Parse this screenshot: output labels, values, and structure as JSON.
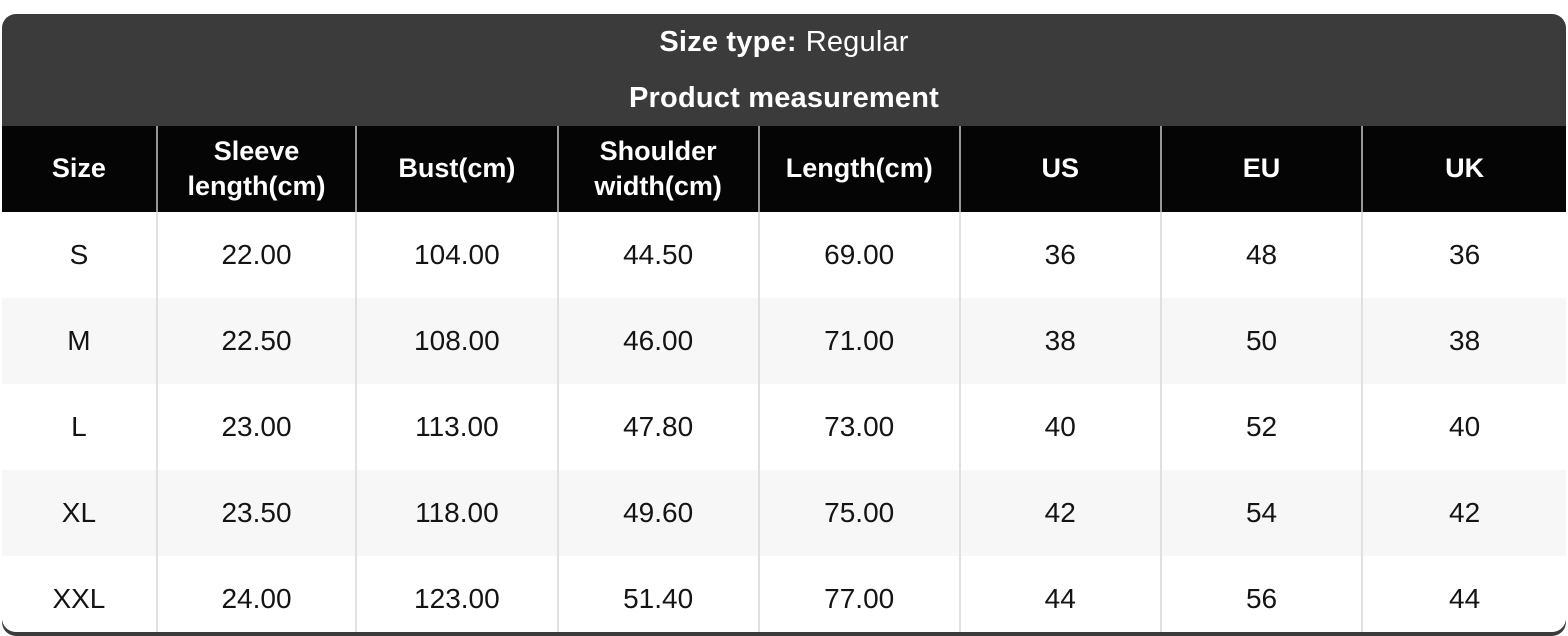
{
  "header_band": {
    "size_type_label": "Size type:",
    "size_type_value": "Regular",
    "title": "Product measurement"
  },
  "chart_data": {
    "type": "table",
    "title": "Product measurement",
    "size_type": "Regular",
    "columns": [
      "Size",
      "Sleeve length(cm)",
      "Bust(cm)",
      "Shoulder width(cm)",
      "Length(cm)",
      "US",
      "EU",
      "UK"
    ],
    "rows": [
      [
        "S",
        "22.00",
        "104.00",
        "44.50",
        "69.00",
        "36",
        "48",
        "36"
      ],
      [
        "M",
        "22.50",
        "108.00",
        "46.00",
        "71.00",
        "38",
        "50",
        "38"
      ],
      [
        "L",
        "23.00",
        "113.00",
        "47.80",
        "73.00",
        "40",
        "52",
        "40"
      ],
      [
        "XL",
        "23.50",
        "118.00",
        "49.60",
        "75.00",
        "42",
        "54",
        "42"
      ],
      [
        "XXL",
        "24.00",
        "123.00",
        "51.40",
        "77.00",
        "44",
        "56",
        "44"
      ]
    ],
    "layout": {
      "legend": "none",
      "grid": "column-separators",
      "alternating_rows": true
    }
  },
  "colors": {
    "band_bg": "#3b3b3b",
    "band_text": "#ffffff",
    "header_bg": "#050505",
    "header_text": "#ffffff",
    "alt_row_bg": "#f7f7f7",
    "body_text": "#141414"
  }
}
